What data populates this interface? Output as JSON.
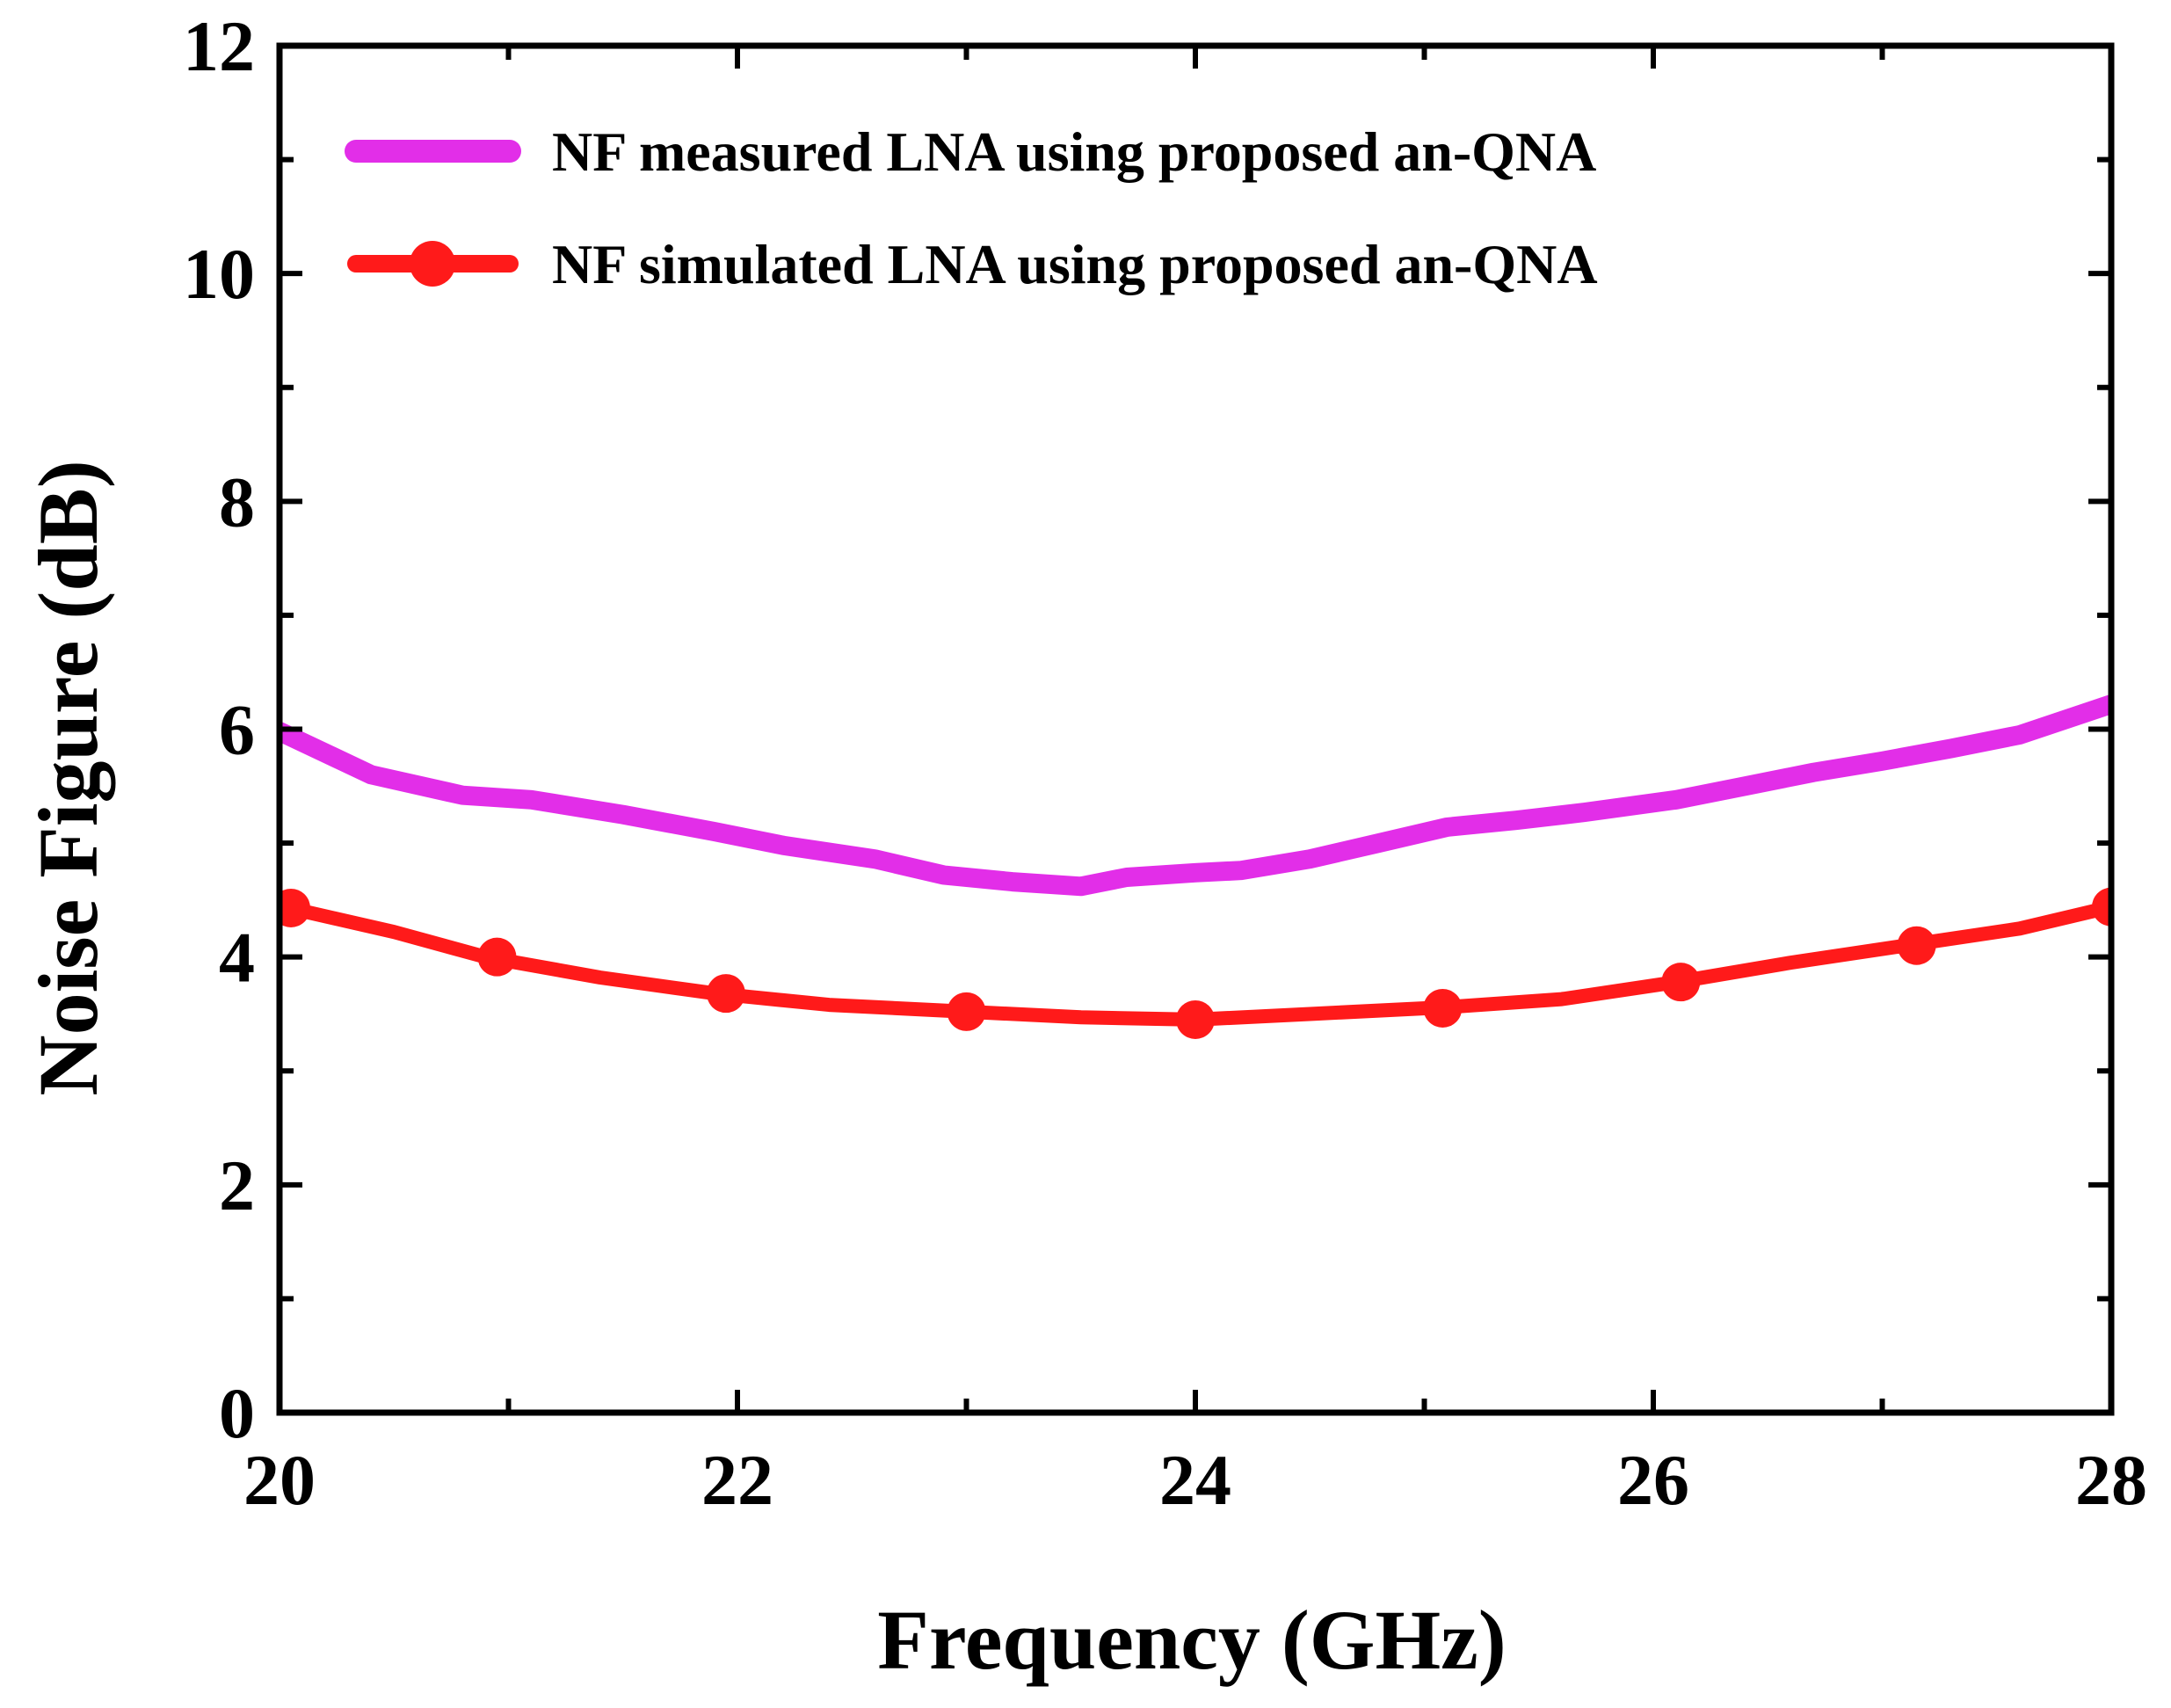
{
  "chart_data": {
    "type": "line",
    "title": "",
    "xlabel": "Frequency (GHz)",
    "ylabel": "Noise Figure (dB)",
    "xlim": [
      20,
      28
    ],
    "ylim": [
      0,
      12
    ],
    "x_ticks": [
      20,
      22,
      24,
      26,
      28
    ],
    "y_ticks": [
      0,
      2,
      4,
      6,
      8,
      10,
      12
    ],
    "grid": false,
    "legend_position": "top-left",
    "series": [
      {
        "name": "NF measured LNA using proposed an-QNA",
        "color": "#e22ee8",
        "marker": "none",
        "x": [
          20.0,
          20.4,
          20.8,
          21.1,
          21.5,
          21.9,
          22.2,
          22.6,
          22.9,
          23.2,
          23.5,
          23.7,
          24.0,
          24.2,
          24.5,
          24.8,
          25.1,
          25.4,
          25.7,
          26.1,
          26.4,
          26.7,
          27.0,
          27.3,
          27.6,
          28.0
        ],
        "y": [
          5.98,
          5.6,
          5.42,
          5.38,
          5.25,
          5.1,
          4.98,
          4.86,
          4.72,
          4.66,
          4.62,
          4.7,
          4.74,
          4.76,
          4.86,
          5.0,
          5.14,
          5.2,
          5.27,
          5.38,
          5.5,
          5.62,
          5.72,
          5.83,
          5.95,
          6.22
        ]
      },
      {
        "name": "NF simulated LNA using proposed an-QNA",
        "color": "#ff1a1a",
        "marker": "circle",
        "x": [
          20.0,
          20.5,
          20.9,
          21.4,
          21.9,
          22.4,
          23.0,
          23.5,
          24.0,
          24.5,
          25.1,
          25.6,
          26.1,
          26.6,
          27.1,
          27.6,
          28.0
        ],
        "y": [
          4.45,
          4.22,
          4.0,
          3.82,
          3.68,
          3.58,
          3.52,
          3.47,
          3.45,
          3.5,
          3.56,
          3.63,
          3.78,
          3.95,
          4.1,
          4.25,
          4.44
        ],
        "marker_x": [
          20.05,
          20.95,
          21.95,
          23.0,
          24.0,
          25.08,
          26.12,
          27.15,
          28.0
        ],
        "marker_y": [
          4.43,
          4.0,
          3.68,
          3.52,
          3.45,
          3.55,
          3.78,
          4.1,
          4.44
        ]
      }
    ]
  }
}
